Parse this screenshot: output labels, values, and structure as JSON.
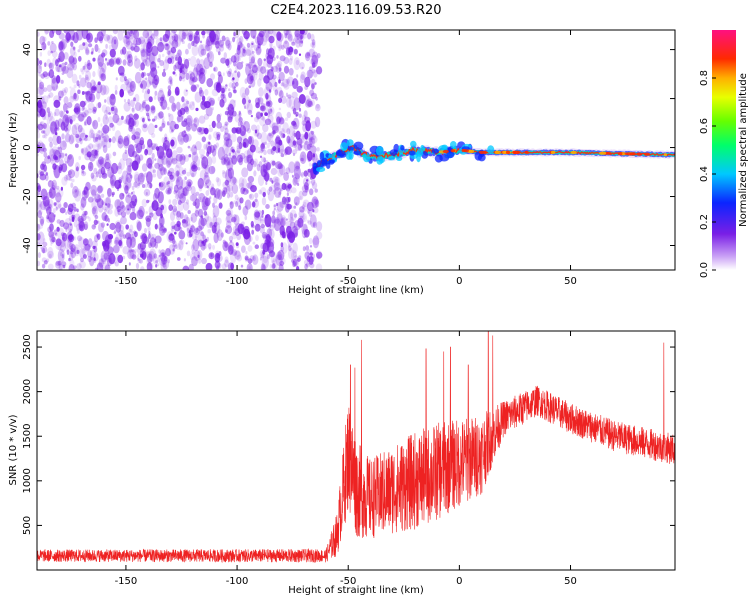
{
  "title": "C2E4.2023.116.09.53.R20",
  "colors": {
    "snr_line": "#ee2222",
    "noise_dots": "#7a1fe6",
    "axis": "#000000"
  },
  "chart_data": [
    {
      "type": "heatmap",
      "xlabel": "Height of straight line (km)",
      "ylabel": "Frequency (Hz)",
      "xlim": [
        -190,
        97
      ],
      "ylim": [
        -50,
        48
      ],
      "xticks": [
        -150,
        -100,
        -50,
        0,
        50
      ],
      "yticks": [
        -40,
        -20,
        0,
        20,
        40
      ],
      "colorbar": {
        "label": "Normalized spectral amplitude",
        "range": [
          0,
          1
        ],
        "ticks": [
          "0.0",
          "0.2",
          "0.4",
          "0.6",
          "0.8"
        ],
        "colormap": "rainbow (white-purple-blue-cyan-green-yellow-red-magenta)"
      },
      "signal_track": [
        {
          "x": -65,
          "freq": -8
        },
        {
          "x": -55,
          "freq": -3
        },
        {
          "x": -48,
          "freq": 0
        },
        {
          "x": -40,
          "freq": -4
        },
        {
          "x": -30,
          "freq": -3
        },
        {
          "x": -20,
          "freq": -1
        },
        {
          "x": -10,
          "freq": -2
        },
        {
          "x": 0,
          "freq": -1
        },
        {
          "x": 10,
          "freq": -2
        },
        {
          "x": 20,
          "freq": -2
        },
        {
          "x": 50,
          "freq": -2
        },
        {
          "x": 97,
          "freq": -3
        }
      ],
      "noise_region": {
        "x_from": -190,
        "x_to": -63
      },
      "grid": false
    },
    {
      "type": "line",
      "xlabel": "Height of straight line (km)",
      "ylabel": "SNR (10 * v/v)",
      "xlim": [
        -190,
        97
      ],
      "ylim": [
        0,
        2680
      ],
      "xticks": [
        -150,
        -100,
        -50,
        0,
        50
      ],
      "yticks": [
        500,
        1000,
        1500,
        2000,
        2500
      ],
      "envelope": [
        {
          "x": -190,
          "mean": 160,
          "spread": 140
        },
        {
          "x": -60,
          "mean": 160,
          "spread": 150
        },
        {
          "x": -55,
          "mean": 400,
          "spread": 500
        },
        {
          "x": -50,
          "mean": 1300,
          "spread": 1300
        },
        {
          "x": -46,
          "mean": 900,
          "spread": 1100
        },
        {
          "x": -40,
          "mean": 800,
          "spread": 900
        },
        {
          "x": -30,
          "mean": 900,
          "spread": 1000
        },
        {
          "x": -20,
          "mean": 1000,
          "spread": 1100
        },
        {
          "x": -10,
          "mean": 1100,
          "spread": 1100
        },
        {
          "x": 0,
          "mean": 1200,
          "spread": 1000
        },
        {
          "x": 10,
          "mean": 1300,
          "spread": 900
        },
        {
          "x": 20,
          "mean": 1700,
          "spread": 400
        },
        {
          "x": 35,
          "mean": 1900,
          "spread": 350
        },
        {
          "x": 50,
          "mean": 1700,
          "spread": 350
        },
        {
          "x": 70,
          "mean": 1500,
          "spread": 350
        },
        {
          "x": 97,
          "mean": 1350,
          "spread": 350
        }
      ],
      "peaks": [
        {
          "x": -49,
          "y": 2300
        },
        {
          "x": -47,
          "y": 2270
        },
        {
          "x": -44,
          "y": 2580
        },
        {
          "x": -15,
          "y": 2480
        },
        {
          "x": -7,
          "y": 2450
        },
        {
          "x": -4,
          "y": 2500
        },
        {
          "x": 4,
          "y": 2300
        },
        {
          "x": 13,
          "y": 2680
        },
        {
          "x": 15,
          "y": 2630
        },
        {
          "x": 92,
          "y": 2550
        }
      ],
      "grid": false
    }
  ]
}
